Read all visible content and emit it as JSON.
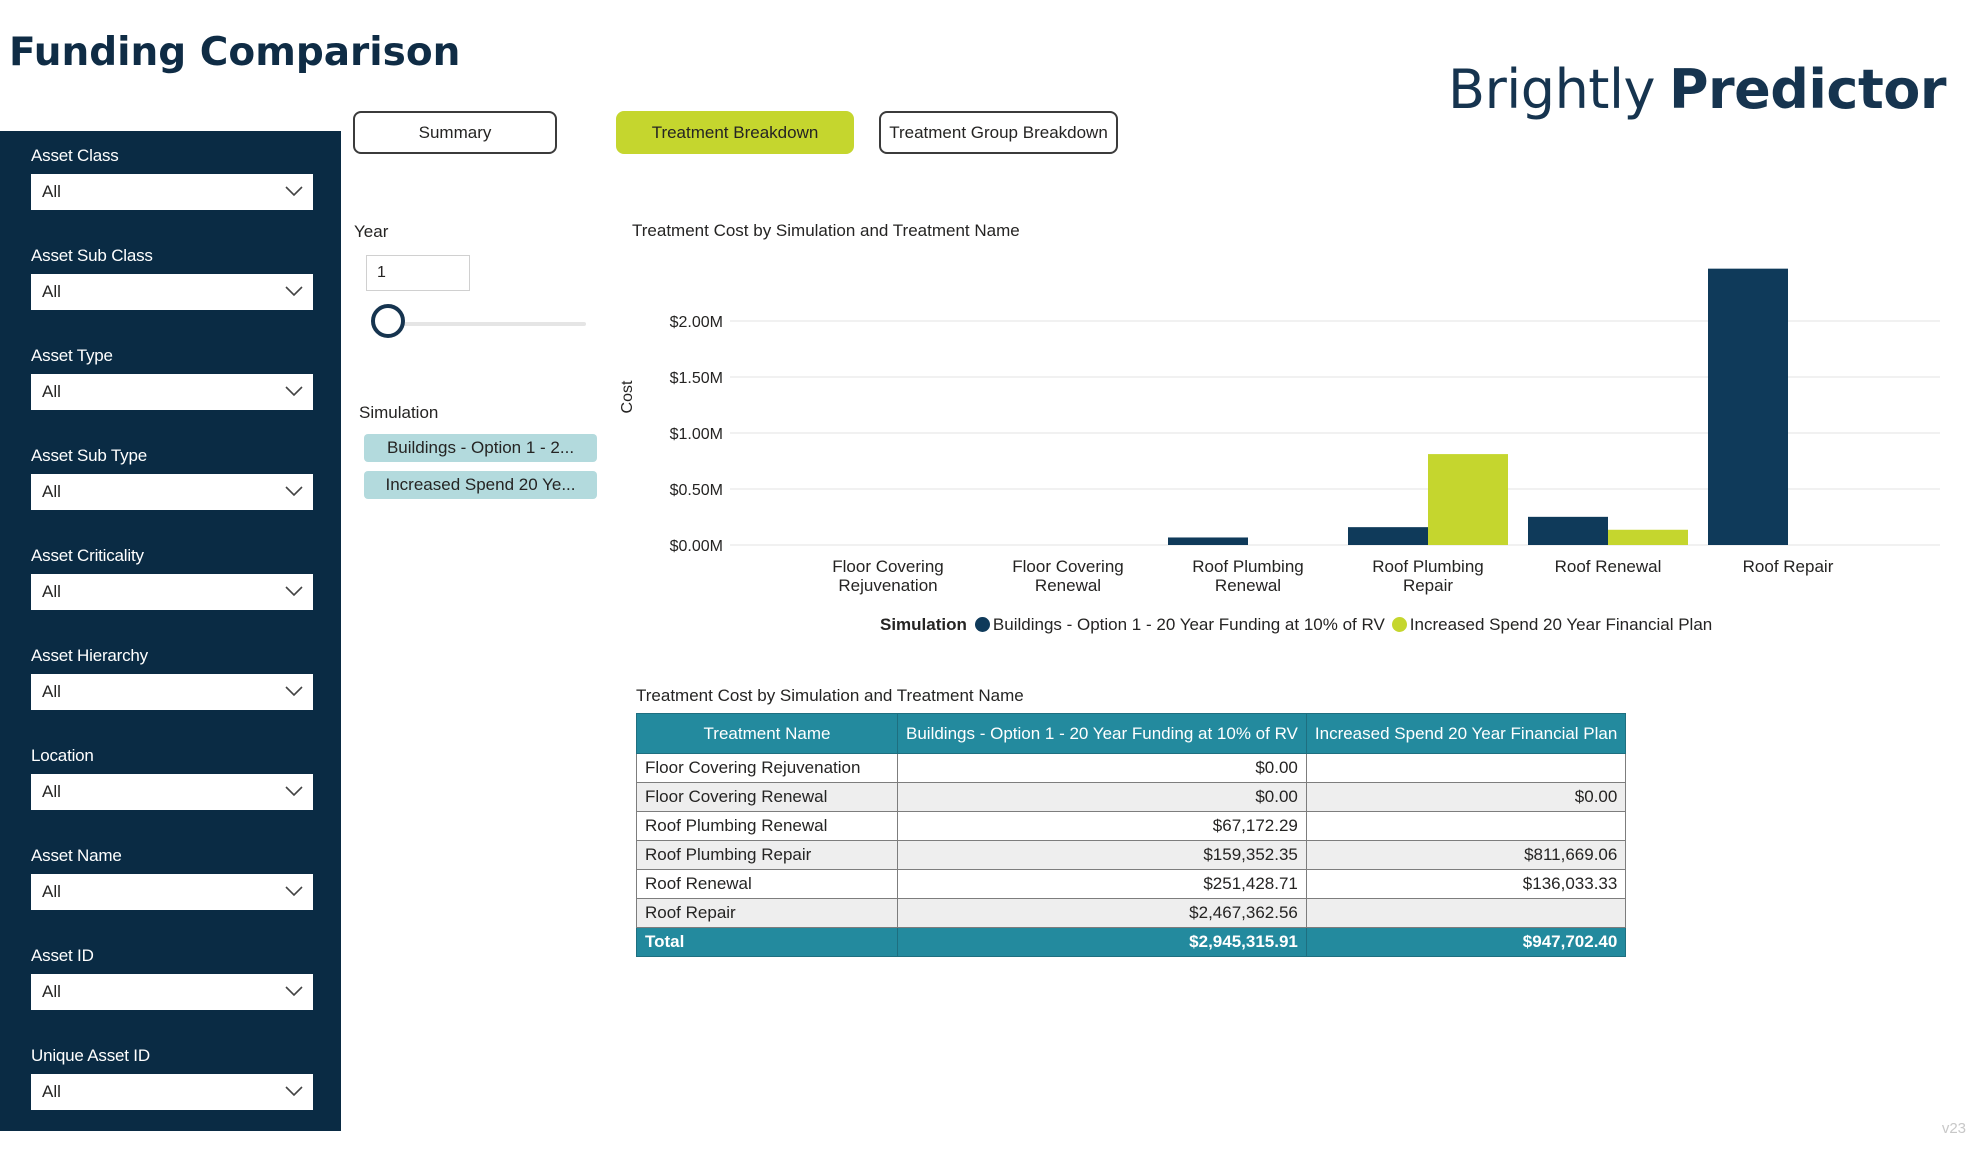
{
  "page": {
    "title": "Funding Comparison",
    "version": "v23"
  },
  "brand": {
    "part1": "Brightly",
    "part2": "Predictor"
  },
  "filters": [
    {
      "label": "Asset Class",
      "value": "All"
    },
    {
      "label": "Asset Sub Class",
      "value": "All"
    },
    {
      "label": "Asset Type",
      "value": "All"
    },
    {
      "label": "Asset Sub Type",
      "value": "All"
    },
    {
      "label": "Asset Criticality",
      "value": "All"
    },
    {
      "label": "Asset Hierarchy",
      "value": "All"
    },
    {
      "label": "Location",
      "value": "All"
    },
    {
      "label": "Asset Name",
      "value": "All"
    },
    {
      "label": "Asset ID",
      "value": "All"
    },
    {
      "label": "Unique Asset ID",
      "value": "All"
    }
  ],
  "tabs": {
    "summary": "Summary",
    "treatment": "Treatment Breakdown",
    "group": "Treatment Group Breakdown",
    "active": "treatment"
  },
  "year": {
    "label": "Year",
    "value": "1"
  },
  "simulation": {
    "label": "Simulation",
    "chips": [
      "Buildings - Option 1 - 2...",
      "Increased Spend 20 Ye..."
    ]
  },
  "colors": {
    "series1": "#0f3a5a",
    "series2": "#c5d62e",
    "header": "#238a9e"
  },
  "chart_data": {
    "type": "bar",
    "title": "Treatment Cost by Simulation and Treatment Name",
    "ylabel": "Cost",
    "xlabel": "",
    "categories": [
      "Floor Covering Rejuvenation",
      "Floor Covering Renewal",
      "Roof Plumbing Renewal",
      "Roof Plumbing Repair",
      "Roof Renewal",
      "Roof Repair"
    ],
    "series": [
      {
        "name": "Buildings - Option 1 - 20 Year Funding at 10% of RV",
        "values": [
          0,
          0,
          67172.29,
          159352.35,
          251428.71,
          2467362.56
        ]
      },
      {
        "name": "Increased Spend 20 Year Financial Plan",
        "values": [
          null,
          0,
          null,
          811669.06,
          136033.33,
          null
        ]
      }
    ],
    "ylim": [
      0,
      2500000
    ],
    "yticks": [
      0,
      500000,
      1000000,
      1500000,
      2000000
    ],
    "ytick_labels": [
      "$0.00M",
      "$0.50M",
      "$1.00M",
      "$1.50M",
      "$2.00M"
    ],
    "grid": true,
    "legend_title": "Simulation",
    "legend_position": "bottom"
  },
  "table": {
    "title": "Treatment Cost by Simulation and Treatment Name",
    "headers": [
      "Treatment Name",
      "Buildings - Option 1 - 20 Year Funding at 10% of RV",
      "Increased Spend 20 Year Financial Plan"
    ],
    "rows": [
      [
        "Floor Covering Rejuvenation",
        "$0.00",
        ""
      ],
      [
        "Floor Covering Renewal",
        "$0.00",
        "$0.00"
      ],
      [
        "Roof Plumbing Renewal",
        "$67,172.29",
        ""
      ],
      [
        "Roof Plumbing Repair",
        "$159,352.35",
        "$811,669.06"
      ],
      [
        "Roof Renewal",
        "$251,428.71",
        "$136,033.33"
      ],
      [
        "Roof Repair",
        "$2,467,362.56",
        ""
      ]
    ],
    "total": [
      "Total",
      "$2,945,315.91",
      "$947,702.40"
    ]
  }
}
